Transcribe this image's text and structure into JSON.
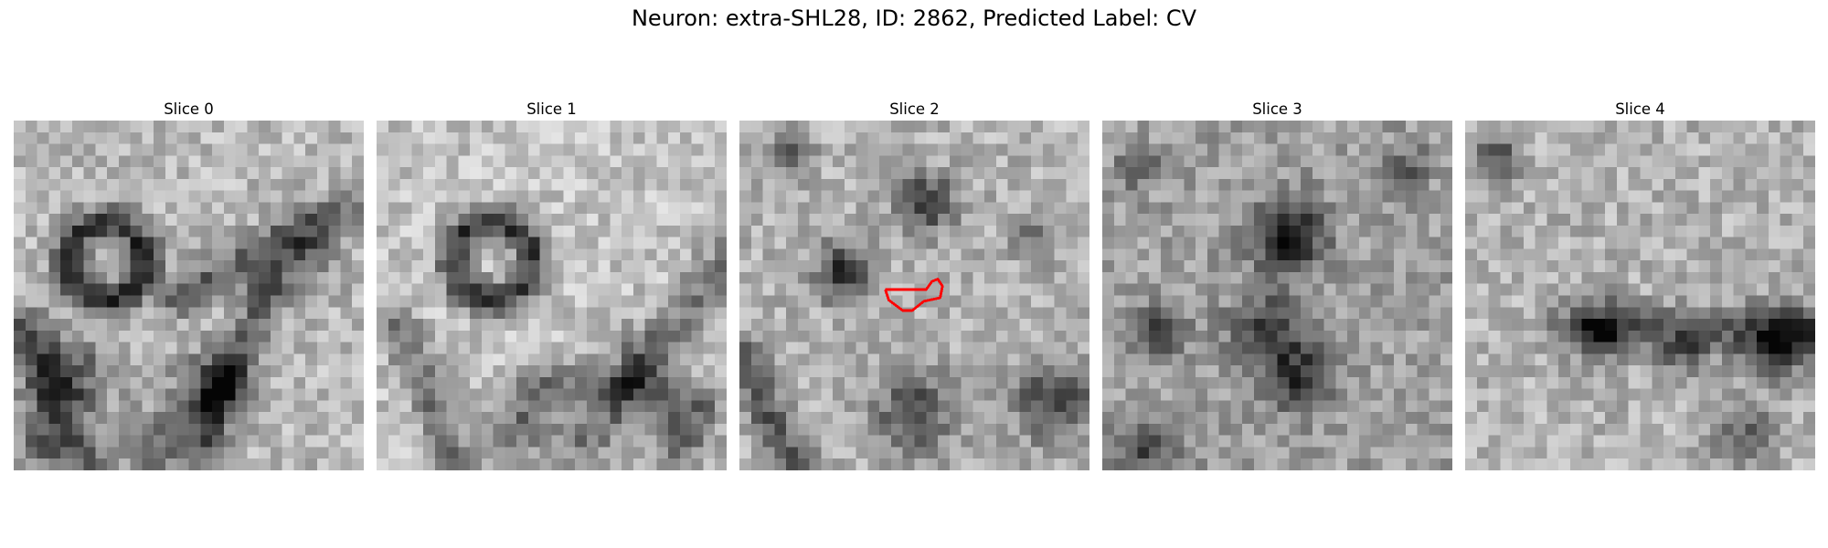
{
  "figure": {
    "title": "Neuron: extra-SHL28, ID: 2862, Predicted Label: CV"
  },
  "panels": [
    {
      "title": "Slice 0",
      "has_contour": false
    },
    {
      "title": "Slice 1",
      "has_contour": false
    },
    {
      "title": "Slice 2",
      "has_contour": true
    },
    {
      "title": "Slice 3",
      "has_contour": false
    },
    {
      "title": "Slice 4",
      "has_contour": false
    }
  ],
  "contour_color": "#ff0000",
  "colormap": "grayscale"
}
